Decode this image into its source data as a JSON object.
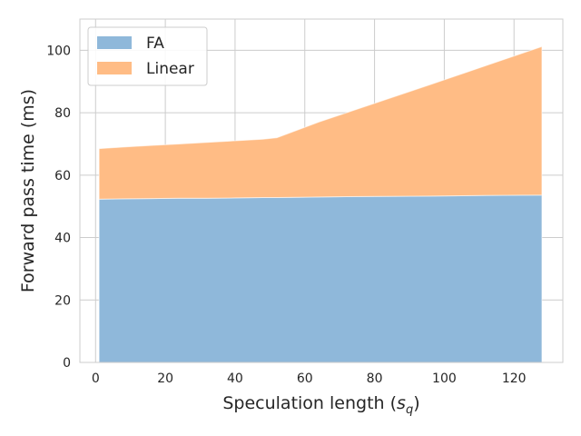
{
  "chart_data": {
    "type": "area",
    "stacked": true,
    "x": [
      1,
      8,
      16,
      24,
      32,
      40,
      48,
      52,
      64,
      80,
      96,
      112,
      128
    ],
    "series": [
      {
        "name": "FA",
        "color": "#8fb8da",
        "values": [
          52.3,
          52.4,
          52.5,
          52.6,
          52.6,
          52.7,
          52.8,
          52.8,
          53.0,
          53.2,
          53.3,
          53.5,
          53.6
        ]
      },
      {
        "name": "Linear",
        "color": "#ffbc85",
        "values": [
          16.2,
          16.6,
          17.0,
          17.4,
          17.9,
          18.3,
          18.7,
          19.2,
          24.0,
          29.8,
          35.7,
          41.6,
          47.6
        ]
      }
    ],
    "title": "",
    "xlabel": "Speculation length",
    "xlabel_symbol": "s",
    "xlabel_subscript": "q",
    "ylabel": "Forward pass time (ms)",
    "xlim": [
      -4.5,
      134
    ],
    "ylim": [
      0,
      110
    ],
    "xticks": [
      0,
      20,
      40,
      60,
      80,
      100,
      120
    ],
    "yticks": [
      0,
      20,
      40,
      60,
      80,
      100
    ],
    "grid": true,
    "legend_position": "top-left"
  }
}
